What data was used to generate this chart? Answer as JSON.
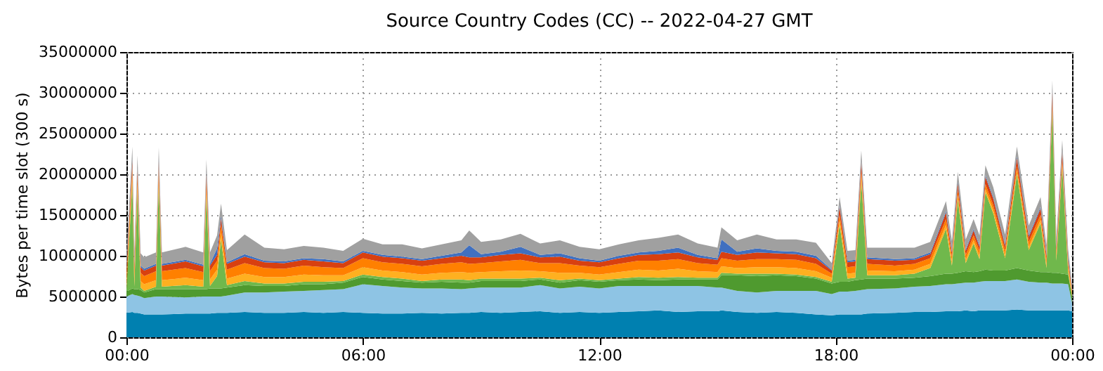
{
  "chart_data": {
    "type": "area",
    "stacked": true,
    "title": "Source Country Codes (CC) -- 2022-04-27 GMT",
    "ylabel": "Bytes per time slot (300 s)",
    "x": [
      0,
      0.15,
      0.2,
      0.28,
      0.36,
      0.45,
      0.75,
      0.82,
      0.9,
      1.5,
      1.95,
      2.03,
      2.12,
      2.3,
      2.4,
      2.55,
      3,
      3.5,
      4,
      4.5,
      5,
      5.5,
      6,
      6.5,
      7,
      7.5,
      8,
      8.5,
      8.7,
      9,
      9.5,
      10,
      10.5,
      11,
      11.5,
      12,
      12.5,
      13,
      13.5,
      14,
      14.5,
      15,
      15.1,
      15.5,
      16,
      16.5,
      17,
      17.5,
      17.9,
      18.1,
      18.3,
      18.5,
      18.65,
      18.8,
      19.5,
      20,
      20.4,
      20.8,
      20.95,
      21.1,
      21.3,
      21.5,
      21.65,
      21.8,
      22.0,
      22.3,
      22.6,
      22.9,
      23.2,
      23.35,
      23.5,
      23.6,
      23.75,
      23.9,
      24
    ],
    "xlim": [
      0,
      24
    ],
    "xticks": [
      {
        "value": 0,
        "label": "00:00"
      },
      {
        "value": 6,
        "label": "06:00"
      },
      {
        "value": 12,
        "label": "12:00"
      },
      {
        "value": 18,
        "label": "18:00"
      },
      {
        "value": 24,
        "label": "00:00"
      }
    ],
    "ylim": [
      0,
      35000000
    ],
    "yticks": [
      0,
      5000000,
      10000000,
      15000000,
      20000000,
      25000000,
      30000000,
      35000000
    ],
    "grid": true,
    "legend": false,
    "series": [
      {
        "color": "#0080b0",
        "values": [
          3000000.0,
          3100000.0,
          3000000.0,
          3000000.0,
          2900000.0,
          2800000.0,
          2800000.0,
          2800000.0,
          2800000.0,
          2900000.0,
          2900000.0,
          2900000.0,
          2900000.0,
          3000000.0,
          3000000.0,
          3000000.0,
          3100000.0,
          3000000.0,
          3000000.0,
          3100000.0,
          3000000.0,
          3100000.0,
          3000000.0,
          2900000.0,
          2900000.0,
          3000000.0,
          2900000.0,
          3000000.0,
          3000000.0,
          3100000.0,
          3000000.0,
          3100000.0,
          3200000.0,
          3000000.0,
          3100000.0,
          3000000.0,
          3100000.0,
          3200000.0,
          3300000.0,
          3100000.0,
          3200000.0,
          3200000.0,
          3300000.0,
          3100000.0,
          3000000.0,
          3100000.0,
          3000000.0,
          2800000.0,
          2700000.0,
          2800000.0,
          2800000.0,
          2800000.0,
          2800000.0,
          2900000.0,
          3000000.0,
          3100000.0,
          3100000.0,
          3200000.0,
          3200000.0,
          3200000.0,
          3300000.0,
          3200000.0,
          3300000.0,
          3300000.0,
          3300000.0,
          3300000.0,
          3400000.0,
          3300000.0,
          3300000.0,
          3300000.0,
          3300000.0,
          3300000.0,
          3300000.0,
          3300000.0,
          3200000.0
        ]
      },
      {
        "color": "#8ec4e4",
        "values": [
          2000000.0,
          2200000.0,
          2200000.0,
          2100000.0,
          2100000.0,
          2000000.0,
          2200000.0,
          2200000.0,
          2200000.0,
          2000000.0,
          2100000.0,
          2100000.0,
          2100000.0,
          2000000.0,
          2000000.0,
          2100000.0,
          2400000.0,
          2500000.0,
          2600000.0,
          2600000.0,
          2800000.0,
          2800000.0,
          3500000.0,
          3400000.0,
          3200000.0,
          3000000.0,
          3100000.0,
          2900000.0,
          3000000.0,
          3000000.0,
          3100000.0,
          3000000.0,
          3200000.0,
          3000000.0,
          3100000.0,
          3000000.0,
          3200000.0,
          3100000.0,
          3000000.0,
          3200000.0,
          3100000.0,
          2900000.0,
          2800000.0,
          2600000.0,
          2500000.0,
          2600000.0,
          2700000.0,
          2900000.0,
          2600000.0,
          2800000.0,
          2800000.0,
          2900000.0,
          3000000.0,
          3000000.0,
          3000000.0,
          3100000.0,
          3200000.0,
          3300000.0,
          3300000.0,
          3400000.0,
          3400000.0,
          3500000.0,
          3500000.0,
          3600000.0,
          3600000.0,
          3600000.0,
          3700000.0,
          3500000.0,
          3400000.0,
          3400000.0,
          3300000.0,
          3300000.0,
          3300000.0,
          3200000.0,
          1000000.0
        ]
      },
      {
        "color": "#4f9a2f",
        "values": [
          600000.0,
          700000.0,
          700000.0,
          800000.0,
          800000.0,
          700000.0,
          900000.0,
          900000.0,
          900000.0,
          1000000.0,
          900000.0,
          900000.0,
          1000000.0,
          1000000.0,
          1000000.0,
          1000000.0,
          900000.0,
          800000.0,
          700000.0,
          800000.0,
          700000.0,
          800000.0,
          900000.0,
          800000.0,
          800000.0,
          700000.0,
          800000.0,
          800000.0,
          700000.0,
          800000.0,
          800000.0,
          800000.0,
          700000.0,
          700000.0,
          800000.0,
          800000.0,
          700000.0,
          800000.0,
          700000.0,
          800000.0,
          800000.0,
          1000000.0,
          1500000.0,
          1900000.0,
          2000000.0,
          1900000.0,
          1800000.0,
          1500000.0,
          1300000.0,
          1200000.0,
          1200000.0,
          1300000.0,
          1300000.0,
          1300000.0,
          1200000.0,
          1100000.0,
          1200000.0,
          1300000.0,
          1300000.0,
          1300000.0,
          1400000.0,
          1300000.0,
          1300000.0,
          1400000.0,
          1300000.0,
          1300000.0,
          1400000.0,
          1400000.0,
          1300000.0,
          1300000.0,
          1300000.0,
          1300000.0,
          1200000.0,
          1200000.0,
          800000.0
        ]
      },
      {
        "color": "#70b84c",
        "values": [
          300000.0,
          13000000.0,
          300000.0,
          12000000.0,
          300000.0,
          200000.0,
          300000.0,
          13000000.0,
          300000.0,
          500000.0,
          300000.0,
          11500000.0,
          300000.0,
          1500000.0,
          6000000.0,
          300000.0,
          500000.0,
          300000.0,
          300000.0,
          300000.0,
          300000.0,
          200000.0,
          300000.0,
          300000.0,
          300000.0,
          200000.0,
          300000.0,
          400000.0,
          300000.0,
          300000.0,
          300000.0,
          300000.0,
          200000.0,
          300000.0,
          200000.0,
          200000.0,
          200000.0,
          300000.0,
          300000.0,
          300000.0,
          200000.0,
          200000.0,
          300000.0,
          200000.0,
          300000.0,
          200000.0,
          200000.0,
          200000.0,
          200000.0,
          7000000.0,
          400000.0,
          300000.0,
          12000000.0,
          400000.0,
          400000.0,
          500000.0,
          1000000.0,
          5500000.0,
          1000000.0,
          9000000.0,
          1000000.0,
          3500000.0,
          1500000.0,
          9500000.0,
          7000000.0,
          1500000.0,
          11500000.0,
          2500000.0,
          6000000.0,
          500000.0,
          20000000.0,
          1500000.0,
          13000000.0,
          300000.0,
          0
        ]
      },
      {
        "color": "#ffb020",
        "values": [
          800000.0,
          800000.0,
          800000.0,
          800000.0,
          800000.0,
          800000.0,
          800000.0,
          800000.0,
          800000.0,
          900000.0,
          800000.0,
          800000.0,
          800000.0,
          800000.0,
          800000.0,
          800000.0,
          900000.0,
          800000.0,
          800000.0,
          900000.0,
          800000.0,
          700000.0,
          900000.0,
          800000.0,
          800000.0,
          800000.0,
          800000.0,
          900000.0,
          900000.0,
          800000.0,
          900000.0,
          1000000.0,
          800000.0,
          900000.0,
          700000.0,
          700000.0,
          800000.0,
          900000.0,
          900000.0,
          1000000.0,
          800000.0,
          700000.0,
          800000.0,
          700000.0,
          800000.0,
          800000.0,
          800000.0,
          700000.0,
          500000.0,
          500000.0,
          600000.0,
          600000.0,
          600000.0,
          600000.0,
          500000.0,
          500000.0,
          500000.0,
          500000.0,
          500000.0,
          500000.0,
          400000.0,
          400000.0,
          400000.0,
          400000.0,
          400000.0,
          400000.0,
          400000.0,
          400000.0,
          400000.0,
          400000.0,
          400000.0,
          400000.0,
          400000.0,
          400000.0,
          300000.0
        ]
      },
      {
        "color": "#ff8000",
        "values": [
          1000000.0,
          1000000.0,
          1000000.0,
          1000000.0,
          1000000.0,
          1000000.0,
          1100000.0,
          1000000.0,
          1100000.0,
          1200000.0,
          1000000.0,
          1000000.0,
          1000000.0,
          1100000.0,
          1000000.0,
          1100000.0,
          1300000.0,
          1100000.0,
          1000000.0,
          1100000.0,
          1000000.0,
          900000.0,
          1100000.0,
          1000000.0,
          1000000.0,
          1000000.0,
          1100000.0,
          1200000.0,
          1100000.0,
          1100000.0,
          1200000.0,
          1300000.0,
          1000000.0,
          1200000.0,
          900000.0,
          900000.0,
          1000000.0,
          1100000.0,
          1200000.0,
          1200000.0,
          1000000.0,
          900000.0,
          1000000.0,
          900000.0,
          1000000.0,
          1000000.0,
          1000000.0,
          900000.0,
          500000.0,
          700000.0,
          800000.0,
          800000.0,
          800000.0,
          800000.0,
          700000.0,
          700000.0,
          700000.0,
          700000.0,
          600000.0,
          600000.0,
          600000.0,
          600000.0,
          600000.0,
          600000.0,
          600000.0,
          600000.0,
          600000.0,
          600000.0,
          600000.0,
          600000.0,
          600000.0,
          600000.0,
          600000.0,
          600000.0,
          300000.0
        ]
      },
      {
        "color": "#d84010",
        "values": [
          700000.0,
          900000.0,
          700000.0,
          900000.0,
          700000.0,
          700000.0,
          700000.0,
          900000.0,
          700000.0,
          800000.0,
          700000.0,
          900000.0,
          700000.0,
          700000.0,
          800000.0,
          700000.0,
          800000.0,
          700000.0,
          700000.0,
          700000.0,
          700000.0,
          600000.0,
          700000.0,
          700000.0,
          700000.0,
          700000.0,
          700000.0,
          800000.0,
          800000.0,
          700000.0,
          800000.0,
          800000.0,
          700000.0,
          800000.0,
          600000.0,
          600000.0,
          700000.0,
          700000.0,
          800000.0,
          800000.0,
          700000.0,
          600000.0,
          800000.0,
          700000.0,
          800000.0,
          700000.0,
          700000.0,
          700000.0,
          400000.0,
          1000000.0,
          600000.0,
          600000.0,
          1000000.0,
          600000.0,
          600000.0,
          500000.0,
          500000.0,
          800000.0,
          500000.0,
          900000.0,
          500000.0,
          600000.0,
          500000.0,
          900000.0,
          800000.0,
          500000.0,
          1000000.0,
          600000.0,
          800000.0,
          500000.0,
          1200000.0,
          500000.0,
          1000000.0,
          500000.0,
          200000.0
        ]
      },
      {
        "color": "#4070c0",
        "values": [
          200000.0,
          200000.0,
          200000.0,
          200000.0,
          200000.0,
          200000.0,
          200000.0,
          200000.0,
          200000.0,
          200000.0,
          200000.0,
          200000.0,
          200000.0,
          800000.0,
          300000.0,
          200000.0,
          300000.0,
          200000.0,
          200000.0,
          200000.0,
          300000.0,
          200000.0,
          200000.0,
          200000.0,
          200000.0,
          200000.0,
          300000.0,
          400000.0,
          1500000.0,
          400000.0,
          400000.0,
          800000.0,
          300000.0,
          400000.0,
          300000.0,
          200000.0,
          300000.0,
          300000.0,
          400000.0,
          600000.0,
          300000.0,
          200000.0,
          1500000.0,
          400000.0,
          500000.0,
          300000.0,
          300000.0,
          300000.0,
          100000.0,
          200000.0,
          200000.0,
          200000.0,
          200000.0,
          200000.0,
          200000.0,
          200000.0,
          200000.0,
          200000.0,
          200000.0,
          200000.0,
          200000.0,
          200000.0,
          200000.0,
          200000.0,
          200000.0,
          200000.0,
          200000.0,
          200000.0,
          200000.0,
          200000.0,
          200000.0,
          200000.0,
          200000.0,
          200000.0,
          100000.0
        ]
      },
      {
        "color": "#a0a0a0",
        "values": [
          1400000.0,
          1500000.0,
          1500000.0,
          1500000.0,
          1500000.0,
          1400000.0,
          1400000.0,
          1500000.0,
          1400000.0,
          1600000.0,
          1500000.0,
          1500000.0,
          1400000.0,
          1600000.0,
          1500000.0,
          1500000.0,
          2400000.0,
          1600000.0,
          1500000.0,
          1500000.0,
          1400000.0,
          1300000.0,
          1500000.0,
          1300000.0,
          1500000.0,
          1300000.0,
          1400000.0,
          1500000.0,
          1800000.0,
          1500000.0,
          1500000.0,
          1600000.0,
          1400000.0,
          1600000.0,
          1400000.0,
          1400000.0,
          1400000.0,
          1500000.0,
          1600000.0,
          1600000.0,
          1400000.0,
          1300000.0,
          1500000.0,
          1400000.0,
          1700000.0,
          1400000.0,
          1500000.0,
          1600000.0,
          800000.0,
          1000000.0,
          1200000.0,
          1200000.0,
          1200000.0,
          1200000.0,
          1400000.0,
          1300000.0,
          1300000.0,
          1200000.0,
          1200000.0,
          1200000.0,
          1200000.0,
          1200000.0,
          1200000.0,
          1200000.0,
          1200000.0,
          1200000.0,
          1200000.0,
          1200000.0,
          1200000.0,
          1100000.0,
          1200000.0,
          1100000.0,
          1200000.0,
          1100000.0,
          500000.0
        ]
      }
    ]
  }
}
